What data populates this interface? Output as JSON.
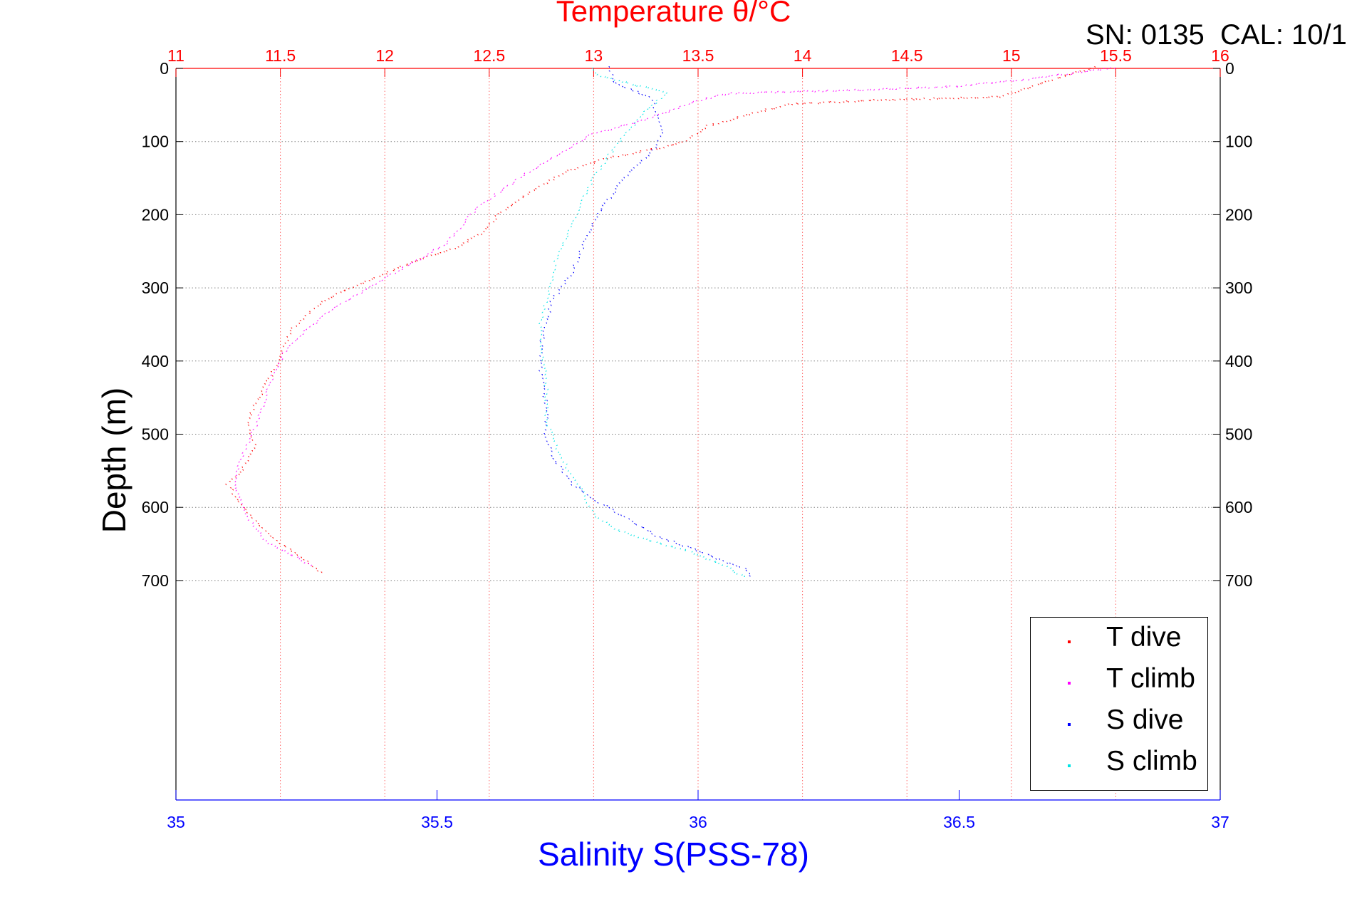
{
  "chart_data": {
    "type": "scatter",
    "title": "Temperature θ/°C",
    "annotation": "SN: 0135  CAL: 10/1",
    "xlabel": "Salinity S(PSS-78)",
    "ylabel": "Depth (m)",
    "x_bottom": {
      "name": "Salinity",
      "range": [
        35,
        37
      ],
      "ticks": [
        35,
        35.5,
        36,
        36.5,
        37
      ],
      "tick_labels": [
        "35",
        "35.5",
        "36",
        "36.5",
        "37"
      ],
      "color": "#0000ff"
    },
    "x_top": {
      "name": "Temperature",
      "range": [
        11,
        16
      ],
      "ticks": [
        11,
        11.5,
        12,
        12.5,
        13,
        13.5,
        14,
        14.5,
        15,
        15.5,
        16
      ],
      "tick_labels": [
        "11",
        "11.5",
        "12",
        "12.5",
        "13",
        "13.5",
        "14",
        "14.5",
        "15",
        "15.5",
        "16"
      ],
      "color": "#ff0000",
      "grid": true
    },
    "y": {
      "range": [
        0,
        1000
      ],
      "reversed": true,
      "ticks": [
        0,
        100,
        200,
        300,
        400,
        500,
        600,
        700
      ],
      "tick_labels": [
        "0",
        "100",
        "200",
        "300",
        "400",
        "500",
        "600",
        "700"
      ],
      "grid": true
    },
    "legend": {
      "position": "bottom-right",
      "entries": [
        {
          "label": "T dive",
          "color": "#ff0000",
          "marker": "triangle-down"
        },
        {
          "label": "T climb",
          "color": "#ff00ff",
          "marker": "triangle-up"
        },
        {
          "label": "S dive",
          "color": "#0000ff",
          "marker": "triangle-down"
        },
        {
          "label": "S climb",
          "color": "#00e5e5",
          "marker": "triangle-up"
        }
      ]
    },
    "series": [
      {
        "name": "T dive",
        "axis": "top",
        "color": "#ff0000",
        "marker": "triangle-down",
        "x": [
          15.4,
          15.22,
          14.95,
          14.35,
          13.95,
          13.8,
          13.55,
          13.45,
          13.32,
          13.05,
          12.85,
          12.7,
          12.55,
          12.48,
          12.35,
          12.1,
          11.85,
          11.7,
          11.55,
          11.5,
          11.4,
          11.35,
          11.38,
          11.32,
          11.25,
          11.3,
          11.38,
          11.5,
          11.7
        ],
        "depth": [
          0,
          15,
          40,
          45,
          50,
          60,
          80,
          100,
          110,
          125,
          145,
          170,
          200,
          225,
          245,
          270,
          300,
          320,
          360,
          400,
          450,
          480,
          520,
          550,
          570,
          590,
          620,
          650,
          690
        ]
      },
      {
        "name": "T climb",
        "axis": "top",
        "color": "#ff00ff",
        "marker": "triangle-up",
        "x": [
          15.5,
          15.35,
          15.1,
          14.75,
          14.3,
          13.65,
          13.5,
          13.2,
          13.0,
          12.88,
          12.65,
          12.45,
          12.3,
          12.05,
          11.9,
          11.75,
          11.62,
          11.52,
          11.45,
          11.4,
          11.32,
          11.28,
          11.32,
          11.38,
          11.45,
          11.55,
          11.65
        ],
        "depth": [
          0,
          5,
          15,
          25,
          30,
          35,
          45,
          75,
          90,
          110,
          150,
          190,
          240,
          280,
          305,
          330,
          360,
          390,
          430,
          480,
          530,
          565,
          600,
          630,
          650,
          665,
          680
        ]
      },
      {
        "name": "S dive",
        "axis": "bottom",
        "color": "#0000ff",
        "marker": "triangle-down",
        "x": [
          35.83,
          35.84,
          35.87,
          35.91,
          35.92,
          35.93,
          35.92,
          35.89,
          35.86,
          35.84,
          35.81,
          35.79,
          35.77,
          35.76,
          35.74,
          35.72,
          35.71,
          35.7,
          35.7,
          35.71,
          35.71,
          35.72,
          35.74,
          35.76,
          35.8,
          35.85,
          35.92,
          36.0,
          36.05,
          36.09,
          36.1
        ],
        "depth": [
          0,
          20,
          30,
          40,
          60,
          90,
          110,
          130,
          150,
          170,
          200,
          230,
          260,
          280,
          300,
          320,
          350,
          380,
          420,
          460,
          500,
          530,
          550,
          570,
          590,
          610,
          640,
          660,
          675,
          685,
          695
        ]
      },
      {
        "name": "S climb",
        "axis": "bottom",
        "color": "#00e5e5",
        "marker": "triangle-up",
        "x": [
          35.8,
          35.81,
          35.86,
          35.92,
          35.94,
          35.9,
          35.85,
          35.82,
          35.8,
          35.78,
          35.77,
          35.75,
          35.73,
          35.72,
          35.71,
          35.7,
          35.7,
          35.71,
          35.71,
          35.73,
          35.76,
          35.78,
          35.79,
          35.8,
          35.84,
          35.9,
          35.98,
          36.05,
          36.09
        ],
        "depth": [
          0,
          10,
          20,
          30,
          35,
          60,
          100,
          130,
          150,
          180,
          200,
          230,
          260,
          290,
          320,
          350,
          380,
          420,
          480,
          520,
          560,
          580,
          595,
          610,
          630,
          645,
          660,
          680,
          695
        ]
      }
    ]
  }
}
